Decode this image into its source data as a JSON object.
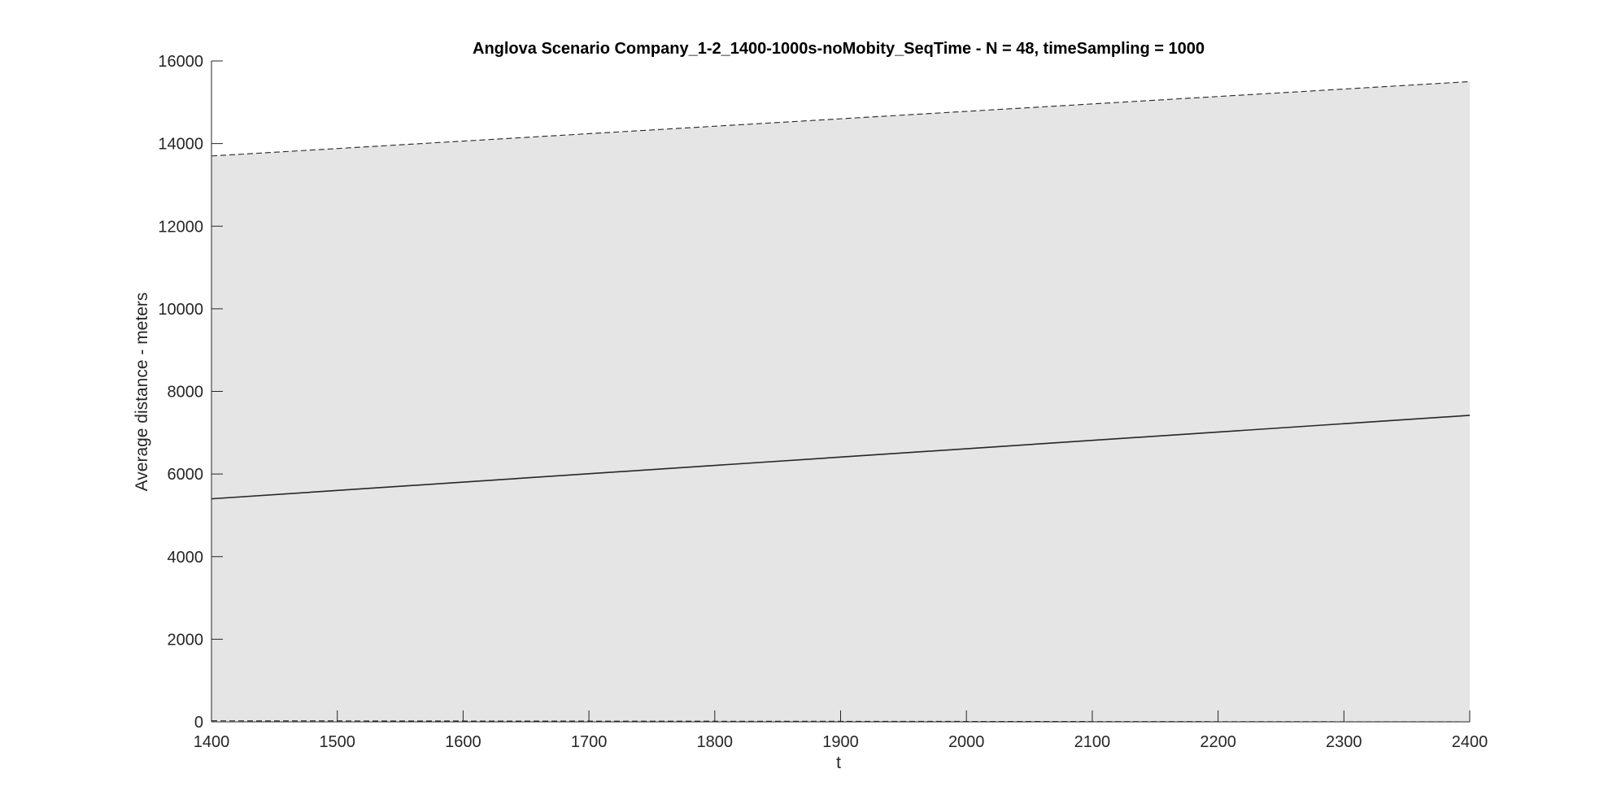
{
  "chart_data": {
    "type": "area",
    "title": "Anglova Scenario Company_1-2_1400-1000s-noMobity_SeqTime - N = 48, timeSampling = 1000",
    "xlabel": "t",
    "ylabel": "Average distance - meters",
    "xlim": [
      1400,
      2400
    ],
    "ylim": [
      0,
      16000
    ],
    "xticks": [
      1400,
      1500,
      1600,
      1700,
      1800,
      1900,
      2000,
      2100,
      2200,
      2300,
      2400
    ],
    "yticks": [
      0,
      2000,
      4000,
      6000,
      8000,
      10000,
      12000,
      14000,
      16000
    ],
    "grid": false,
    "legend": "none",
    "x": [
      1400,
      2400
    ],
    "series": [
      {
        "role": "upper bound",
        "style": "dashed",
        "values": [
          13700,
          15500
        ]
      },
      {
        "role": "mean",
        "style": "solid",
        "values": [
          5400,
          7420
        ]
      },
      {
        "role": "lower bound",
        "style": "dashed",
        "values": [
          25,
          0
        ]
      }
    ],
    "band": {
      "lower": [
        25,
        0
      ],
      "upper": [
        13700,
        15500
      ]
    },
    "colors": {
      "band_fill": "#e5e5e5",
      "line": "#262626",
      "axis": "#262626"
    }
  }
}
